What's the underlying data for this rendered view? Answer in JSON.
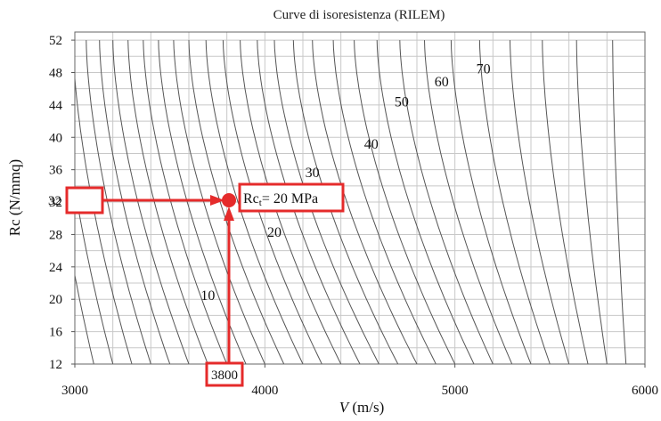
{
  "chart_data": {
    "type": "line",
    "title": "Curve di isoresistenza (RILEM)",
    "xlabel_var": "V",
    "xlabel_unit": " (m/s)",
    "ylabel": "Rc (N/mmq)",
    "xlim": [
      3000,
      6000
    ],
    "ylim": [
      12,
      53
    ],
    "x_ticks": [
      "3000",
      "4000",
      "5000",
      "6000"
    ],
    "y_ticks": [
      "12",
      "16",
      "20",
      "24",
      "28",
      "32",
      "36",
      "40",
      "44",
      "48",
      "52"
    ],
    "grid": true,
    "curve_labels": [
      {
        "text": "10",
        "x": 3700,
        "y": 19.9
      },
      {
        "text": "20",
        "x": 4050,
        "y": 27.7
      },
      {
        "text": "30",
        "x": 4250,
        "y": 35.1
      },
      {
        "text": "40",
        "x": 4560,
        "y": 38.6
      },
      {
        "text": "50",
        "x": 4720,
        "y": 43.8
      },
      {
        "text": "60",
        "x": 4930,
        "y": 46.3
      },
      {
        "text": "70",
        "x": 5150,
        "y": 47.9
      }
    ],
    "series_params": {
      "count": 31,
      "x_at_y12": [
        3000,
        3100,
        3200,
        3300,
        3400,
        3500,
        3600,
        3700,
        3800,
        3900,
        4000,
        4100,
        4200,
        4300,
        4400,
        4500,
        4600,
        4700,
        4800,
        4900,
        5000,
        5100,
        5200,
        5300,
        5400,
        5500,
        5600,
        5700,
        5800,
        5900,
        6000
      ],
      "x_at_y52": [
        2800,
        2850,
        2920,
        2990,
        3060,
        3130,
        3200,
        3280,
        3360,
        3440,
        3520,
        3600,
        3690,
        3780,
        3870,
        3960,
        4050,
        4150,
        4250,
        4360,
        4470,
        4590,
        4710,
        4840,
        4980,
        5130,
        5290,
        5460,
        5640,
        5830,
        6030
      ],
      "color": "#555555"
    },
    "highlight_point": {
      "x": 3800,
      "y": 32,
      "color": "#e52b2b"
    },
    "annotations": {
      "x_value_label": "3800",
      "y_value_label": "32",
      "result_label": "Rc",
      "result_subscript": "t",
      "result_value": "= 20 MPa"
    },
    "accent_color": "#e52b2b"
  }
}
